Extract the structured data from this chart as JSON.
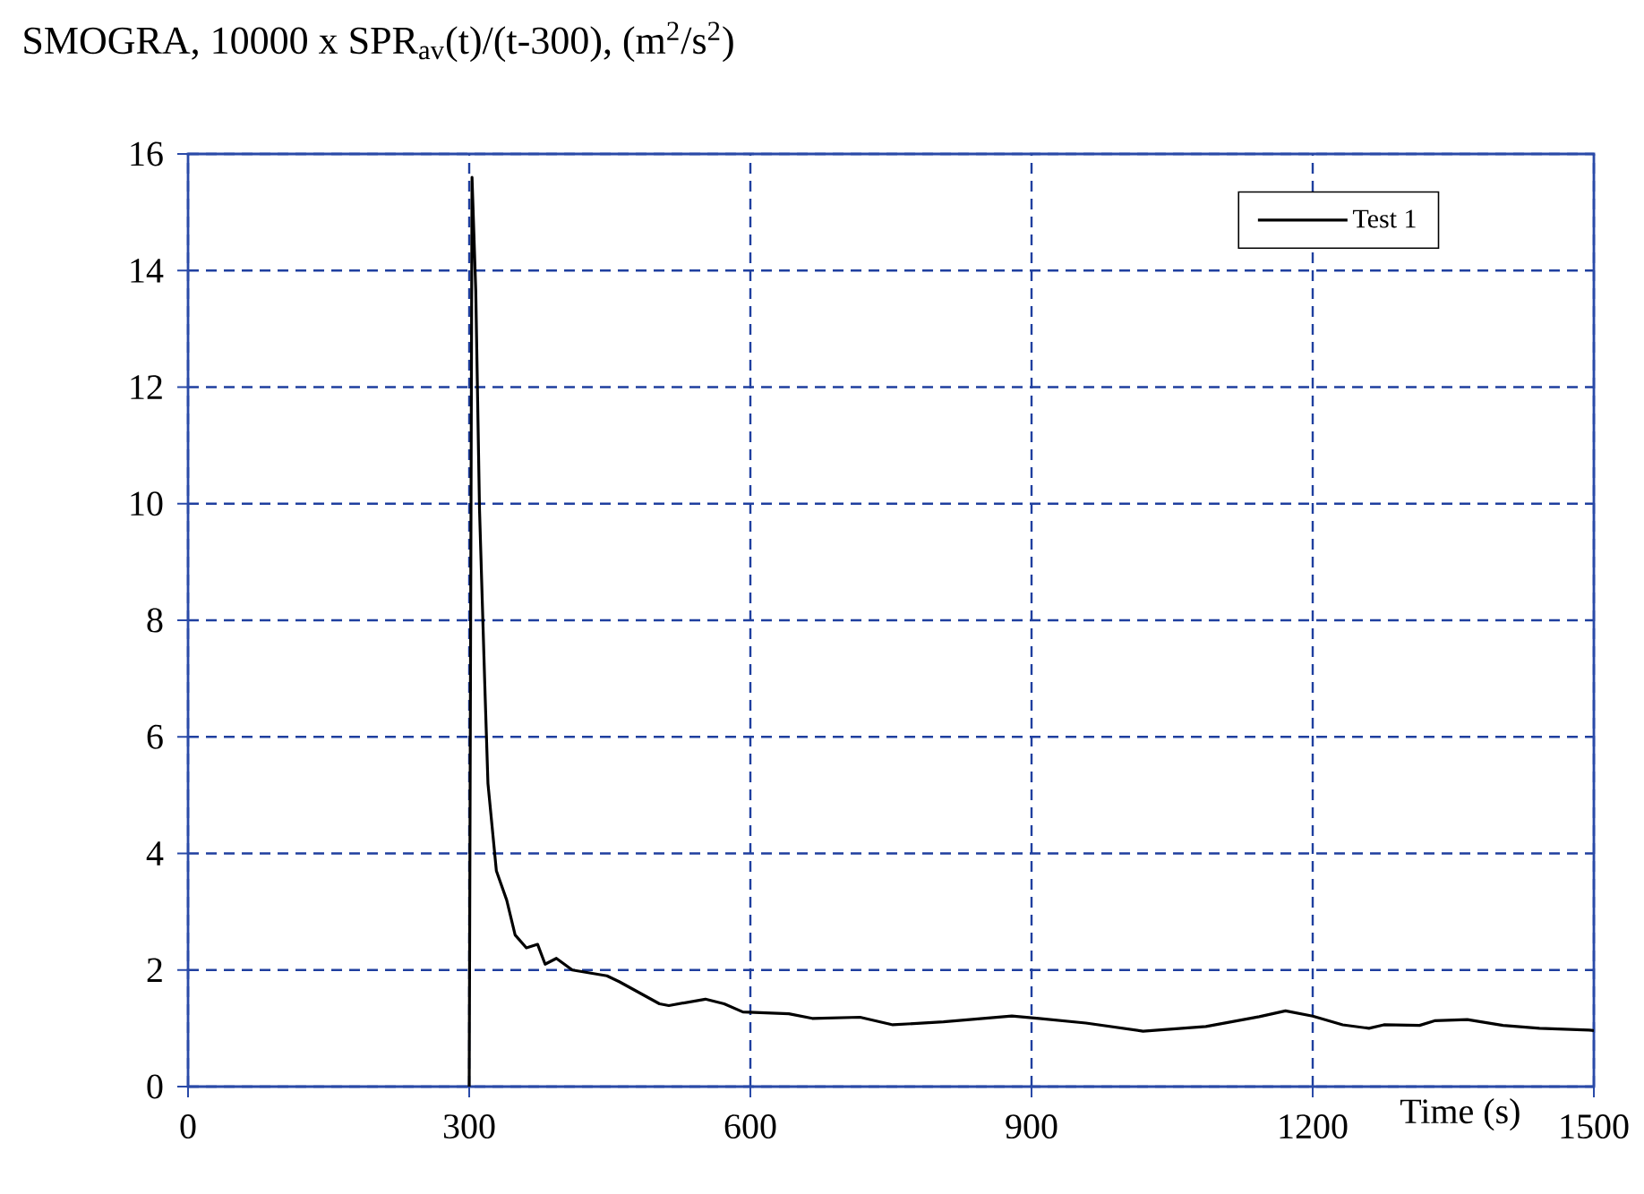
{
  "chart_data": {
    "type": "line",
    "title": "SMOGRA, 10000 x SPR$_{av}$(t)/(t-300), (m$^{2}$/s$^{2}$)",
    "xlabel": "Time (s)",
    "xlim": [
      0,
      1500
    ],
    "xticks": [
      0,
      300,
      600,
      900,
      1200,
      1500
    ],
    "ylim": [
      0,
      16
    ],
    "yticks": [
      0,
      2,
      4,
      6,
      8,
      10,
      12,
      14,
      16
    ],
    "grid": true,
    "legend": "top right",
    "line_style": "solid",
    "marker": "none",
    "series": [
      {
        "name": "Test 1",
        "color": "#000000",
        "x": [
          300,
          303,
          307,
          311,
          317,
          320,
          329,
          340,
          349,
          361,
          373,
          381,
          393,
          410,
          447,
          460,
          503,
          513,
          552,
          572,
          592,
          641,
          666,
          717,
          752,
          806,
          879,
          908,
          958,
          1019,
          1086,
          1143,
          1171,
          1200,
          1232,
          1260,
          1276,
          1314,
          1330,
          1365,
          1403,
          1442,
          1495,
          1500
        ],
        "values": [
          0,
          15.6,
          13.65,
          9.9,
          6.7,
          5.2,
          3.7,
          3.2,
          2.6,
          2.38,
          2.44,
          2.1,
          2.2,
          2.0,
          1.9,
          1.8,
          1.42,
          1.39,
          1.5,
          1.42,
          1.28,
          1.25,
          1.17,
          1.19,
          1.06,
          1.11,
          1.21,
          1.17,
          1.09,
          0.95,
          1.03,
          1.2,
          1.3,
          1.21,
          1.06,
          1.0,
          1.06,
          1.05,
          1.13,
          1.15,
          1.05,
          1.0,
          0.97,
          0.96
        ]
      }
    ]
  }
}
